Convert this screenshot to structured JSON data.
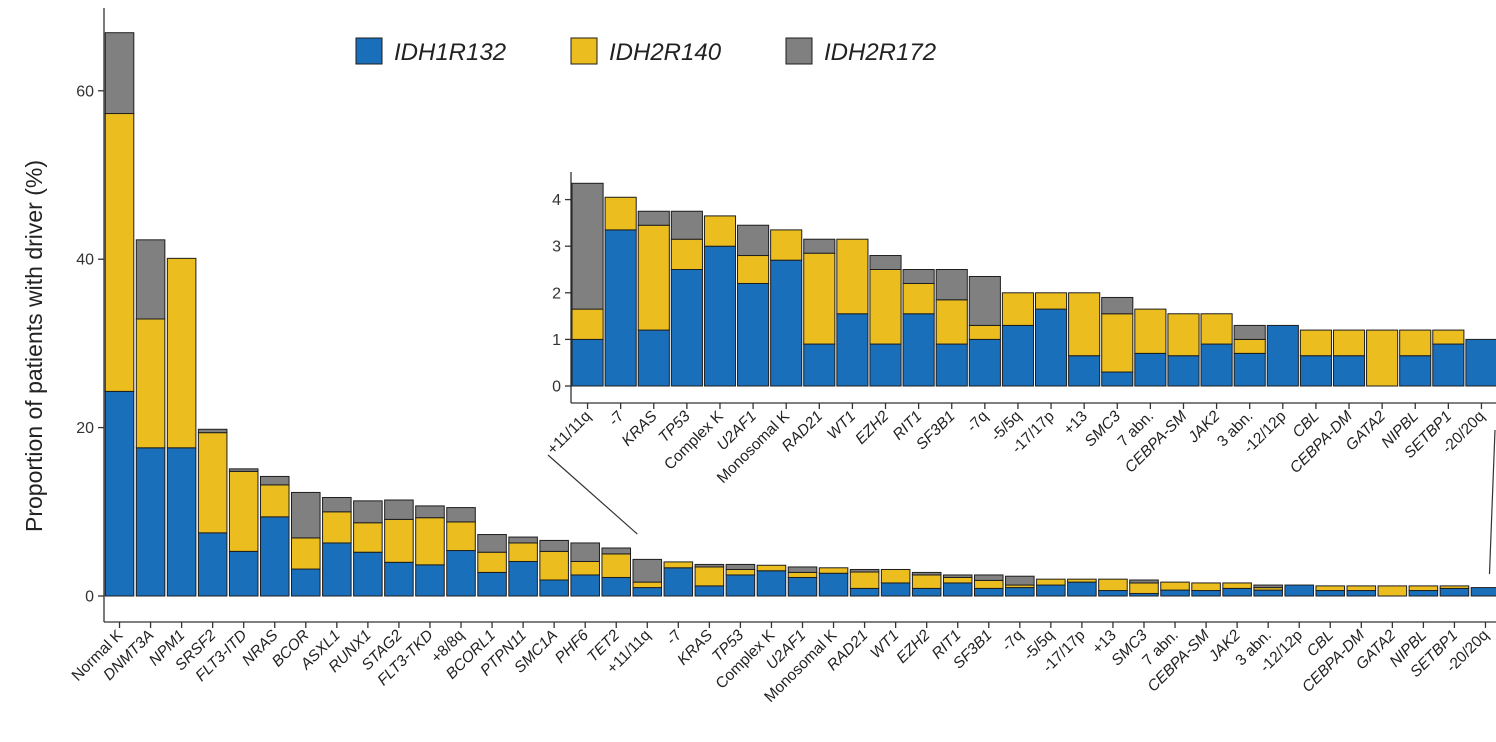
{
  "chart_data": [
    {
      "type": "bar",
      "stacked": true,
      "ylabel": "Proportion of patients with driver (%)",
      "ylim": [
        0,
        67
      ],
      "yticks": [
        0,
        20,
        40,
        60
      ],
      "grid": false,
      "legend": {
        "placement": "top-center"
      },
      "categories": [
        "Normal K",
        "DNMT3A",
        "NPM1",
        "SRSF2",
        "FLT3-ITD",
        "NRAS",
        "BCOR",
        "ASXL1",
        "RUNX1",
        "STAG2",
        "FLT3-TKD",
        "+8/8q",
        "BCORL1",
        "PTPN11",
        "SMC1A",
        "PHF6",
        "TET2",
        "+11/11q",
        "-7",
        "KRAS",
        "TP53",
        "Complex K",
        "U2AF1",
        "Monosomal K",
        "RAD21",
        "WT1",
        "EZH2",
        "RIT1",
        "SF3B1",
        "-7q",
        "-5/5q",
        "-17/17p",
        "+13",
        "SMC3",
        "7 abn.",
        "CEBPA-SM",
        "JAK2",
        "3 abn.",
        "-12/12p",
        "CBL",
        "CEBPA-DM",
        "GATA2",
        "NIPBL",
        "SETBP1",
        "-20/20q"
      ],
      "italic_categories": [
        "DNMT3A",
        "NPM1",
        "SRSF2",
        "FLT3-ITD",
        "NRAS",
        "BCOR",
        "ASXL1",
        "RUNX1",
        "STAG2",
        "FLT3-TKD",
        "BCORL1",
        "PTPN11",
        "SMC1A",
        "PHF6",
        "TET2",
        "KRAS",
        "TP53",
        "U2AF1",
        "RAD21",
        "WT1",
        "EZH2",
        "RIT1",
        "SF3B1",
        "SMC3",
        "CEBPA-SM",
        "JAK2",
        "CBL",
        "CEBPA-DM",
        "GATA2",
        "NIPBL",
        "SETBP1"
      ],
      "series": [
        {
          "name": "IDH1R132",
          "color": "#1a6fba",
          "values": [
            24.3,
            17.6,
            17.6,
            7.5,
            5.3,
            9.4,
            3.2,
            6.3,
            5.2,
            4.0,
            3.7,
            5.4,
            2.8,
            4.1,
            1.9,
            2.5,
            2.2,
            1.0,
            3.35,
            1.2,
            2.5,
            3.0,
            2.2,
            2.7,
            0.9,
            1.55,
            0.9,
            1.55,
            0.9,
            1.0,
            1.3,
            1.65,
            0.65,
            0.3,
            0.7,
            0.65,
            0.9,
            0.7,
            1.3,
            0.65,
            0.65,
            0.0,
            0.65,
            0.9,
            1.0
          ]
        },
        {
          "name": "IDH2R140",
          "color": "#ebbd1f",
          "values": [
            33.0,
            15.3,
            22.5,
            11.9,
            9.5,
            3.8,
            3.7,
            3.7,
            3.5,
            5.1,
            5.6,
            3.4,
            2.4,
            2.2,
            3.4,
            1.6,
            2.8,
            0.65,
            0.7,
            2.25,
            0.65,
            0.65,
            0.6,
            0.65,
            1.95,
            1.6,
            1.6,
            0.65,
            0.95,
            0.3,
            0.7,
            0.35,
            1.35,
            1.25,
            0.95,
            0.9,
            0.65,
            0.3,
            0.0,
            0.55,
            0.55,
            1.2,
            0.55,
            0.3,
            0.0
          ]
        },
        {
          "name": "IDH2R172",
          "color": "#808080",
          "values": [
            9.6,
            9.4,
            0.0,
            0.4,
            0.3,
            1.0,
            5.4,
            1.7,
            2.6,
            2.3,
            1.4,
            1.7,
            2.1,
            0.7,
            1.3,
            2.2,
            0.7,
            2.7,
            0.0,
            0.3,
            0.6,
            0.0,
            0.65,
            0.0,
            0.3,
            0.0,
            0.3,
            0.3,
            0.65,
            1.05,
            0.0,
            0.0,
            0.0,
            0.35,
            0.0,
            0.0,
            0.0,
            0.3,
            0.0,
            0.0,
            0.0,
            0.0,
            0.0,
            0.0,
            0.0
          ]
        }
      ]
    },
    {
      "type": "bar",
      "stacked": true,
      "inset": true,
      "ylim": [
        0,
        4.5
      ],
      "yticks": [
        0,
        1,
        2,
        3,
        4
      ],
      "grid": false,
      "range_in_main": [
        "+11/11q",
        "-20/20q"
      ],
      "categories": [
        "+11/11q",
        "-7",
        "KRAS",
        "TP53",
        "Complex K",
        "U2AF1",
        "Monosomal K",
        "RAD21",
        "WT1",
        "EZH2",
        "RIT1",
        "SF3B1",
        "-7q",
        "-5/5q",
        "-17/17p",
        "+13",
        "SMC3",
        "7 abn.",
        "CEBPA-SM",
        "JAK2",
        "3 abn.",
        "-12/12p",
        "CBL",
        "CEBPA-DM",
        "GATA2",
        "NIPBL",
        "SETBP1",
        "-20/20q"
      ],
      "italic_categories": [
        "KRAS",
        "TP53",
        "U2AF1",
        "RAD21",
        "WT1",
        "EZH2",
        "RIT1",
        "SF3B1",
        "SMC3",
        "CEBPA-SM",
        "JAK2",
        "CBL",
        "CEBPA-DM",
        "GATA2",
        "NIPBL",
        "SETBP1"
      ],
      "series": [
        {
          "name": "IDH1R132",
          "color": "#1a6fba",
          "values": [
            1.0,
            3.35,
            1.2,
            2.5,
            3.0,
            2.2,
            2.7,
            0.9,
            1.55,
            0.9,
            1.55,
            0.9,
            1.0,
            1.3,
            1.65,
            0.65,
            0.3,
            0.7,
            0.65,
            0.9,
            0.7,
            1.3,
            0.65,
            0.65,
            0.0,
            0.65,
            0.9,
            1.0
          ]
        },
        {
          "name": "IDH2R140",
          "color": "#ebbd1f",
          "values": [
            0.65,
            0.7,
            2.25,
            0.65,
            0.65,
            0.6,
            0.65,
            1.95,
            1.6,
            1.6,
            0.65,
            0.95,
            0.3,
            0.7,
            0.35,
            1.35,
            1.25,
            0.95,
            0.9,
            0.65,
            0.3,
            0.0,
            0.55,
            0.55,
            1.2,
            0.55,
            0.3,
            0.0
          ]
        },
        {
          "name": "IDH2R172",
          "color": "#808080",
          "values": [
            2.7,
            0.0,
            0.3,
            0.6,
            0.0,
            0.65,
            0.0,
            0.3,
            0.0,
            0.3,
            0.3,
            0.65,
            1.05,
            0.0,
            0.0,
            0.0,
            0.35,
            0.0,
            0.0,
            0.0,
            0.3,
            0.0,
            0.0,
            0.0,
            0.0,
            0.0,
            0.0,
            0.0
          ]
        }
      ]
    }
  ]
}
